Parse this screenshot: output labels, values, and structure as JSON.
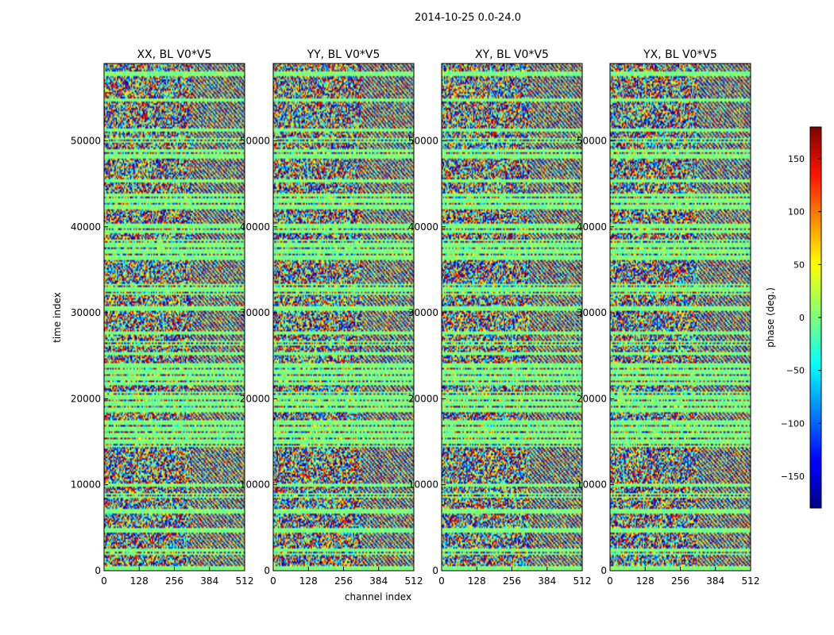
{
  "figure": {
    "suptitle": "2014-10-25 0.0-24.0",
    "xlabel": "channel index",
    "ylabel": "time index"
  },
  "colorbar": {
    "label": "phase (deg.)",
    "colormap": "jet",
    "range": [
      -180,
      180
    ],
    "ticks": [
      -150,
      -100,
      -50,
      0,
      50,
      100,
      150
    ],
    "tick_labels": [
      "−150",
      "−100",
      "−50",
      "0",
      "50",
      "100",
      "150"
    ]
  },
  "chart_data": [
    {
      "type": "heatmap",
      "title": "XX, BL V0*V5",
      "x_ticks": [
        0,
        128,
        256,
        384,
        512
      ],
      "y_ticks": [
        0,
        10000,
        20000,
        30000,
        40000,
        50000
      ],
      "xlim": [
        0,
        512
      ],
      "ylim": [
        0,
        59000
      ],
      "value": "phase (deg.)",
      "value_range": [
        -180,
        180
      ]
    },
    {
      "type": "heatmap",
      "title": "YY, BL V0*V5",
      "x_ticks": [
        0,
        128,
        256,
        384,
        512
      ],
      "y_ticks": [
        0,
        10000,
        20000,
        30000,
        40000,
        50000
      ],
      "xlim": [
        0,
        512
      ],
      "ylim": [
        0,
        59000
      ],
      "value": "phase (deg.)",
      "value_range": [
        -180,
        180
      ]
    },
    {
      "type": "heatmap",
      "title": "XY, BL V0*V5",
      "x_ticks": [
        0,
        128,
        256,
        384,
        512
      ],
      "y_ticks": [
        0,
        10000,
        20000,
        30000,
        40000,
        50000
      ],
      "xlim": [
        0,
        512
      ],
      "ylim": [
        0,
        59000
      ],
      "value": "phase (deg.)",
      "value_range": [
        -180,
        180
      ]
    },
    {
      "type": "heatmap",
      "title": "YX, BL V0*V5",
      "x_ticks": [
        0,
        128,
        256,
        384,
        512
      ],
      "y_ticks": [
        0,
        10000,
        20000,
        30000,
        40000,
        50000
      ],
      "xlim": [
        0,
        512
      ],
      "ylim": [
        0,
        59000
      ],
      "value": "phase (deg.)",
      "value_range": [
        -180,
        180
      ]
    }
  ]
}
